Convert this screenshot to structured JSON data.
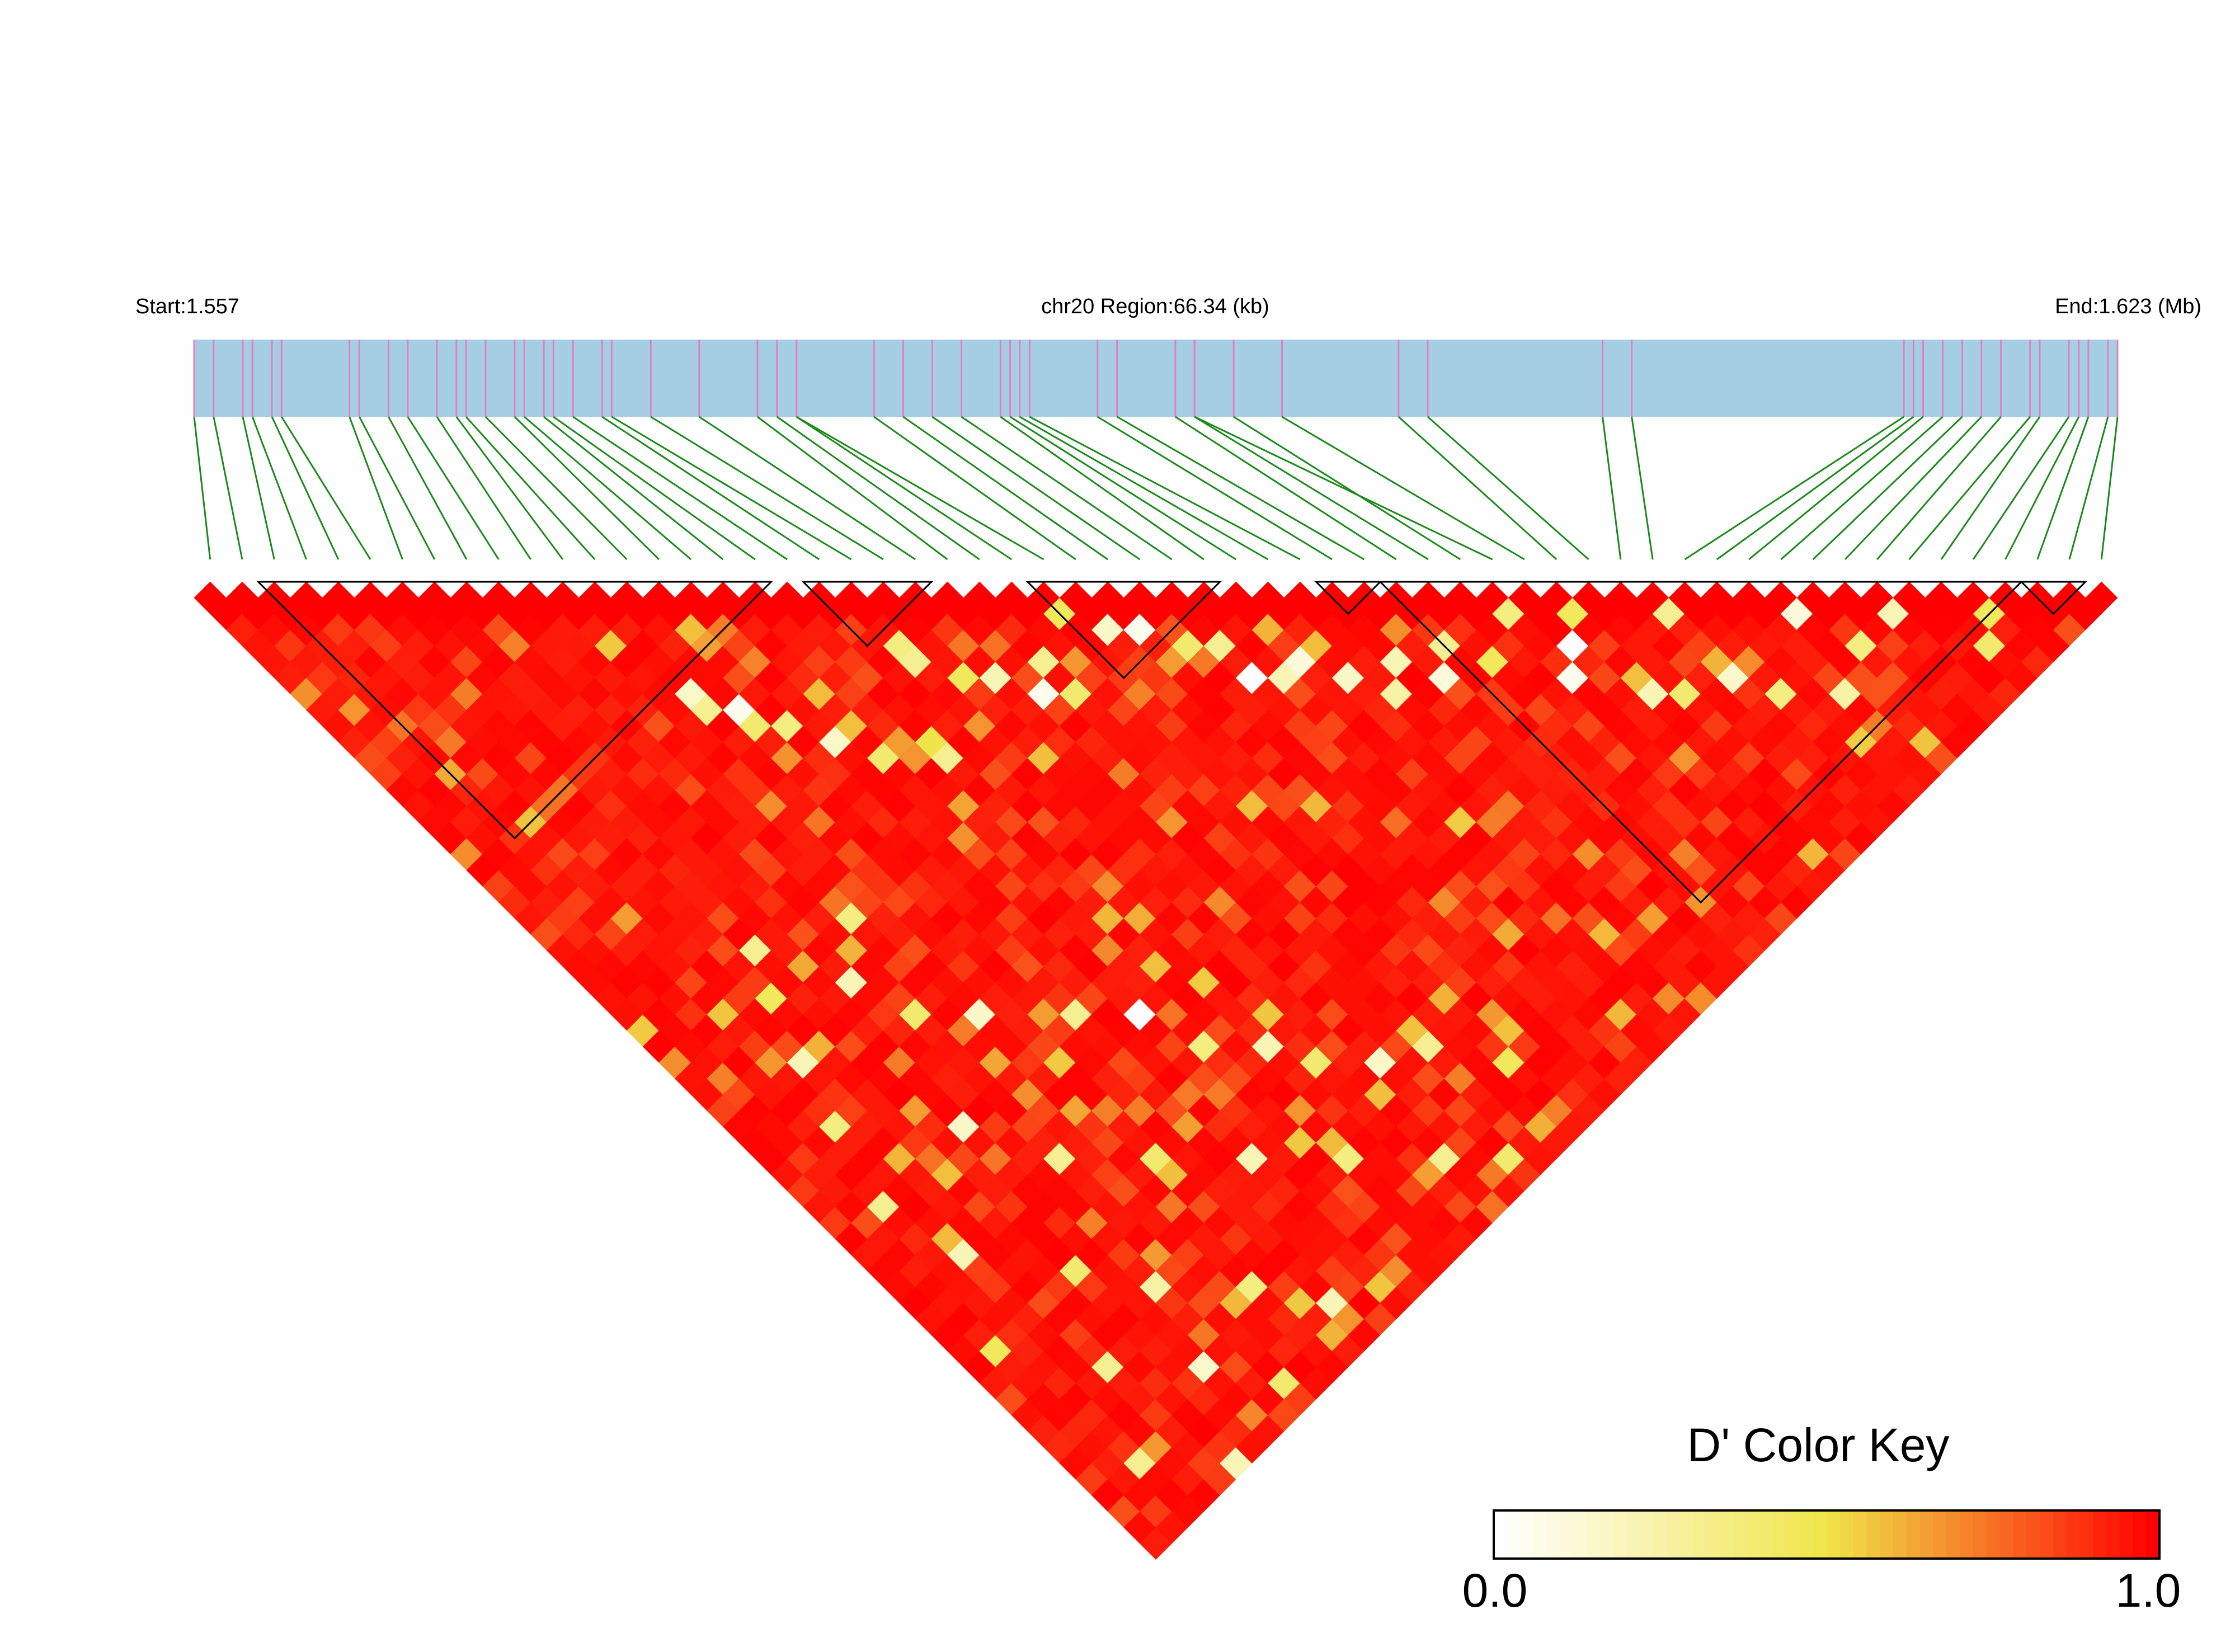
{
  "header": {
    "start_label": "Start:1.557",
    "region_label": "chr20 Region:66.34 (kb)",
    "end_label": "End:1.623 (Mb)"
  },
  "colors": {
    "track_fill": "#a6cee3",
    "snp_tick": "#e27fc4",
    "connector": "#1a8a1a",
    "block_outline": "#000000",
    "key_low": "#ffffff",
    "key_mid": "#efe54a",
    "key_high": "#ff0000"
  },
  "chart_data": {
    "type": "heatmap",
    "title": "",
    "region": {
      "chromosome": "chr20",
      "start_mb": 1.557,
      "end_mb": 1.623,
      "size_kb": 66.34
    },
    "snp_positions_mb": [
      1.557,
      1.55767,
      1.55867,
      1.559,
      1.55967,
      1.56,
      1.56233,
      1.56267,
      1.56367,
      1.56433,
      1.56533,
      1.566,
      1.56633,
      1.567,
      1.568,
      1.56833,
      1.569,
      1.56933,
      1.57,
      1.571,
      1.57133,
      1.57267,
      1.57433,
      1.57633,
      1.577,
      1.57767,
      1.57767,
      1.58033,
      1.58133,
      1.58233,
      1.58333,
      1.58467,
      1.585,
      1.58533,
      1.58567,
      1.588,
      1.58867,
      1.59067,
      1.59133,
      1.59267,
      1.59133,
      1.59433,
      1.59833,
      1.59933,
      1.60533,
      1.60633,
      1.61567,
      1.616,
      1.61633,
      1.617,
      1.61767,
      1.61833,
      1.619,
      1.62,
      1.62033,
      1.62133,
      1.62167,
      1.622,
      1.62267,
      1.623
    ],
    "snp_count": 60,
    "haplotype_blocks": [
      {
        "first_snp": 2,
        "last_snp": 17
      },
      {
        "first_snp": 19,
        "last_snp": 22
      },
      {
        "first_snp": 26,
        "last_snp": 31
      },
      {
        "first_snp": 35,
        "last_snp": 36
      },
      {
        "first_snp": 37,
        "last_snp": 56
      },
      {
        "first_snp": 57,
        "last_snp": 58
      }
    ],
    "color_key": {
      "title": "D' Color Key",
      "min": 0.0,
      "max": 1.0,
      "min_label": "0.0",
      "max_label": "1.0"
    },
    "value_pattern": {
      "background_d_prime": 0.93,
      "low_value_cells": [
        [
          12,
          18,
          0.15
        ],
        [
          12,
          19,
          0.3
        ],
        [
          13,
          20,
          0.05
        ],
        [
          13,
          21,
          0.4
        ],
        [
          14,
          22,
          0.35
        ],
        [
          15,
          24,
          0.15
        ],
        [
          16,
          26,
          0.4
        ],
        [
          18,
          27,
          0.5
        ],
        [
          18,
          28,
          0.3
        ],
        [
          20,
          23,
          0.35
        ],
        [
          20,
          24,
          0.3
        ],
        [
          21,
          26,
          0.45
        ],
        [
          22,
          27,
          0.2
        ],
        [
          23,
          29,
          0.05
        ],
        [
          24,
          30,
          0.4
        ],
        [
          24,
          28,
          0.3
        ],
        [
          26,
          27,
          0.45
        ],
        [
          28,
          30,
          0.05
        ],
        [
          27,
          29,
          0.15
        ],
        [
          29,
          32,
          0.4
        ],
        [
          30,
          33,
          0.3
        ],
        [
          30,
          35,
          0.0
        ],
        [
          31,
          36,
          0.2
        ],
        [
          32,
          36,
          0.1
        ],
        [
          33,
          38,
          0.15
        ],
        [
          34,
          40,
          0.25
        ],
        [
          35,
          39,
          0.2
        ],
        [
          36,
          41,
          0.1
        ],
        [
          37,
          40,
          0.3
        ],
        [
          38,
          42,
          0.45
        ],
        [
          40,
          45,
          0.05
        ],
        [
          42,
          48,
          0.2
        ],
        [
          43,
          49,
          0.4
        ],
        [
          45,
          50,
          0.15
        ],
        [
          46,
          52,
          0.35
        ],
        [
          48,
          54,
          0.25
        ],
        [
          10,
          30,
          0.35
        ],
        [
          8,
          32,
          0.2
        ],
        [
          9,
          35,
          0.4
        ],
        [
          11,
          37,
          0.15
        ],
        [
          14,
          40,
          0.3
        ],
        [
          16,
          42,
          0.0
        ],
        [
          17,
          45,
          0.35
        ],
        [
          19,
          47,
          0.2
        ],
        [
          20,
          49,
          0.4
        ],
        [
          22,
          51,
          0.15
        ],
        [
          24,
          52,
          0.3
        ],
        [
          26,
          55,
          0.45
        ],
        [
          6,
          28,
          0.3
        ],
        [
          5,
          30,
          0.45
        ],
        [
          4,
          33,
          0.2
        ],
        [
          3,
          36,
          0.35
        ],
        [
          7,
          40,
          0.15
        ],
        [
          9,
          44,
          0.3
        ],
        [
          12,
          47,
          0.4
        ],
        [
          15,
          50,
          0.2
        ],
        [
          18,
          53,
          0.35
        ],
        [
          21,
          56,
          0.3
        ],
        [
          23,
          58,
          0.4
        ],
        [
          2,
          40,
          0.3
        ],
        [
          3,
          44,
          0.2
        ],
        [
          6,
          48,
          0.4
        ],
        [
          8,
          51,
          0.25
        ],
        [
          11,
          54,
          0.35
        ],
        [
          13,
          57,
          0.2
        ],
        [
          1,
          48,
          0.45
        ],
        [
          4,
          52,
          0.3
        ],
        [
          7,
          55,
          0.15
        ],
        [
          9,
          58,
          0.4
        ],
        [
          2,
          56,
          0.3
        ],
        [
          5,
          59,
          0.2
        ],
        [
          40,
          41,
          0.35
        ],
        [
          41,
          44,
          0.0
        ],
        [
          42,
          43,
          0.45
        ],
        [
          45,
          46,
          0.3
        ],
        [
          49,
          50,
          0.1
        ],
        [
          50,
          53,
          0.35
        ],
        [
          52,
          53,
          0.2
        ],
        [
          54,
          57,
          0.4
        ],
        [
          55,
          56,
          0.45
        ]
      ]
    }
  }
}
